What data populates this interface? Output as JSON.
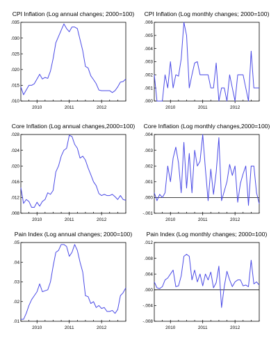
{
  "colors": {
    "line": "#4a4ae6",
    "axis": "#000000",
    "background": "#ffffff"
  },
  "chart_data": [
    {
      "type": "line",
      "title": "CPI Inflation (Log annual changes; 2000=100)",
      "x_tick_labels": [
        "2010",
        "2011",
        "2012"
      ],
      "x_tick_positions": [
        6,
        18,
        30
      ],
      "x_range": [
        0,
        39
      ],
      "ylim": [
        0.01,
        0.035
      ],
      "y_ticks": [
        0.01,
        0.015,
        0.02,
        0.025,
        0.03,
        0.035
      ],
      "y_tick_labels": [
        ".010",
        ".015",
        ".020",
        ".025",
        ".030",
        ".035"
      ],
      "zero_line": false,
      "series": [
        {
          "values": [
            0.0145,
            0.012,
            0.0135,
            0.015,
            0.015,
            0.0155,
            0.017,
            0.0185,
            0.017,
            0.0175,
            0.0172,
            0.0195,
            0.0235,
            0.0285,
            0.0305,
            0.0325,
            0.0345,
            0.033,
            0.032,
            0.0335,
            0.0335,
            0.033,
            0.0295,
            0.026,
            0.021,
            0.0205,
            0.018,
            0.0168,
            0.0155,
            0.0135,
            0.0133,
            0.0133,
            0.0133,
            0.0133,
            0.0127,
            0.0133,
            0.0145,
            0.016,
            0.0162,
            0.017
          ]
        }
      ]
    },
    {
      "type": "line",
      "title": "CPI Inflation (Log monthly changes; 2000=100)",
      "x_tick_labels": [
        "2010",
        "2011",
        "2012"
      ],
      "x_tick_positions": [
        6,
        18,
        30
      ],
      "x_range": [
        0,
        39
      ],
      "ylim": [
        0.0,
        0.006
      ],
      "y_ticks": [
        0.0,
        0.001,
        0.002,
        0.003,
        0.004,
        0.005,
        0.006
      ],
      "y_tick_labels": [
        ".000",
        ".001",
        ".002",
        ".003",
        ".004",
        ".005",
        ".006"
      ],
      "zero_line": false,
      "series": [
        {
          "values": [
            0.002,
            0.0,
            0.0,
            0.0,
            0.002,
            0.001,
            0.003,
            0.001,
            0.002,
            0.0019,
            0.0032,
            0.006,
            0.005,
            0.001,
            0.002,
            0.0029,
            0.003,
            0.002,
            0.002,
            0.002,
            0.002,
            0.001,
            0.001,
            0.0029,
            0.0,
            0.001,
            0.001,
            0.0,
            0.002,
            0.001,
            0.0,
            0.002,
            0.002,
            0.002,
            0.001,
            0.0,
            0.0038,
            0.001,
            0.001,
            0.001
          ]
        }
      ]
    },
    {
      "type": "line",
      "title": "Core Inflation (Log annual changes,2000=100)",
      "x_tick_labels": [
        "2010",
        "2011",
        "2012"
      ],
      "x_tick_positions": [
        6,
        18,
        30
      ],
      "x_range": [
        0,
        39
      ],
      "ylim": [
        0.008,
        0.028
      ],
      "y_ticks": [
        0.008,
        0.012,
        0.016,
        0.02,
        0.024,
        0.028
      ],
      "y_tick_labels": [
        ".008",
        ".012",
        ".016",
        ".020",
        ".024",
        ".028"
      ],
      "zero_line": false,
      "series": [
        {
          "values": [
            0.0145,
            0.0105,
            0.0115,
            0.011,
            0.0095,
            0.0095,
            0.0108,
            0.0098,
            0.011,
            0.0115,
            0.0132,
            0.0128,
            0.0138,
            0.0185,
            0.02,
            0.0225,
            0.024,
            0.0245,
            0.0278,
            0.0275,
            0.0255,
            0.0245,
            0.022,
            0.0225,
            0.0215,
            0.0195,
            0.0178,
            0.016,
            0.015,
            0.013,
            0.0125,
            0.0128,
            0.0125,
            0.0125,
            0.0128,
            0.0122,
            0.0115,
            0.0125,
            0.0115,
            0.0113
          ]
        }
      ]
    },
    {
      "type": "line",
      "title": "Core Inflation (Log monthly changes,2000=100)",
      "x_tick_labels": [
        "2010",
        "2011",
        "2012"
      ],
      "x_tick_positions": [
        6,
        18,
        30
      ],
      "x_range": [
        0,
        39
      ],
      "ylim": [
        -0.001,
        0.004
      ],
      "y_ticks": [
        -0.001,
        0.0,
        0.001,
        0.002,
        0.003,
        0.004
      ],
      "y_tick_labels": [
        "-.001",
        ".000",
        ".001",
        ".002",
        ".003",
        ".004"
      ],
      "zero_line": true,
      "series": [
        {
          "values": [
            0.0003,
            -0.0002,
            0.0002,
            0.0,
            0.0003,
            0.002,
            0.001,
            0.0025,
            0.0032,
            0.0022,
            0.0003,
            0.0035,
            0.0006,
            0.0028,
            0.0003,
            0.003,
            0.002,
            0.0023,
            0.004,
            0.0018,
            -0.0002,
            0.0018,
            0.0002,
            0.0016,
            0.0038,
            -0.0002,
            0.0004,
            0.001,
            0.0021,
            0.0014,
            0.002,
            -0.0003,
            0.0009,
            0.0015,
            0.002,
            -0.0005,
            0.002,
            0.002,
            0.0003,
            -0.0004
          ]
        }
      ]
    },
    {
      "type": "line",
      "title": "Pain Index (Log annual changes; 2000=100)",
      "x_tick_labels": [
        "2010",
        "2011",
        "2012"
      ],
      "x_tick_positions": [
        6,
        18,
        30
      ],
      "x_range": [
        0,
        39
      ],
      "ylim": [
        0.01,
        0.05
      ],
      "y_ticks": [
        0.01,
        0.02,
        0.03,
        0.04,
        0.05
      ],
      "y_tick_labels": [
        ".01",
        ".02",
        ".03",
        ".04",
        ".05"
      ],
      "zero_line": false,
      "series": [
        {
          "values": [
            0.011,
            0.011,
            0.014,
            0.018,
            0.021,
            0.023,
            0.025,
            0.029,
            0.025,
            0.0255,
            0.026,
            0.03,
            0.038,
            0.045,
            0.046,
            0.049,
            0.049,
            0.048,
            0.043,
            0.045,
            0.049,
            0.046,
            0.04,
            0.035,
            0.023,
            0.0225,
            0.019,
            0.02,
            0.017,
            0.018,
            0.0165,
            0.017,
            0.015,
            0.015,
            0.0155,
            0.014,
            0.016,
            0.023,
            0.0245,
            0.027
          ]
        }
      ]
    },
    {
      "type": "line",
      "title": "Pain Index (Log monthly changes; 2000=100)",
      "x_tick_labels": [
        "2010",
        "2011",
        "2012"
      ],
      "x_tick_positions": [
        6,
        18,
        30
      ],
      "x_range": [
        0,
        39
      ],
      "ylim": [
        -0.008,
        0.012
      ],
      "y_ticks": [
        -0.008,
        -0.004,
        0.0,
        0.004,
        0.008,
        0.012
      ],
      "y_tick_labels": [
        "-.008",
        "-.004",
        ".000",
        ".004",
        ".008",
        ".012"
      ],
      "zero_line": true,
      "series": [
        {
          "values": [
            0.002,
            0.0005,
            0.0003,
            0.0008,
            0.0025,
            0.003,
            0.004,
            0.005,
            0.0008,
            0.001,
            0.0035,
            0.0085,
            0.009,
            0.0085,
            0.0025,
            0.005,
            0.002,
            0.004,
            0.001,
            0.004,
            0.0025,
            0.0045,
            0.0005,
            0.0018,
            0.006,
            -0.0045,
            0.0008,
            0.0047,
            0.0025,
            0.0008,
            0.002,
            0.0025,
            0.0025,
            0.001,
            0.0012,
            0.0008,
            0.0075,
            0.0015,
            0.002,
            0.0012
          ]
        }
      ]
    }
  ]
}
